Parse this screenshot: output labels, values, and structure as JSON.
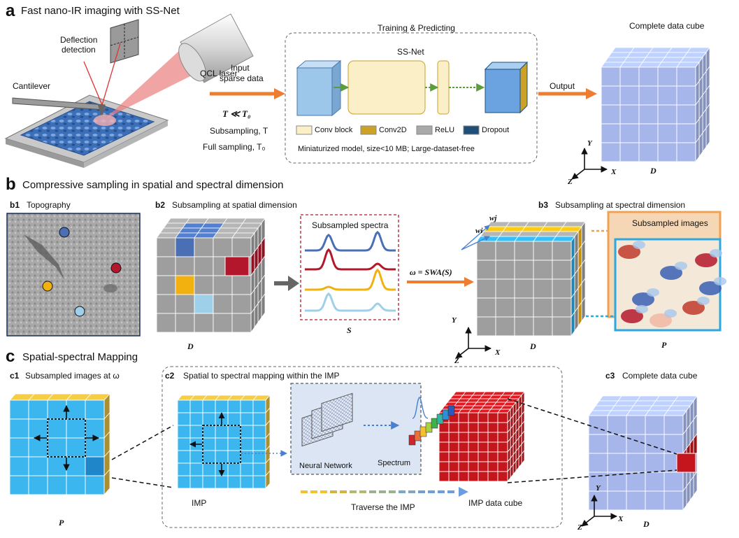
{
  "panel_a": {
    "letter": "a",
    "title": "Fast nano-IR imaging with SS-Net",
    "deflection": [
      "Deflection",
      "detection"
    ],
    "qcl": "QCL laser",
    "cantilever": "Cantilever",
    "input": [
      "Input",
      "sparse data"
    ],
    "t_rel": "T ≪ T₀",
    "subsampling": "Subsampling, T",
    "full_sampling": "Full sampling, T₀",
    "training": "Training & Predicting",
    "ssnet": "SS-Net",
    "legend": [
      "Conv block",
      "Conv2D",
      "ReLU",
      "Dropout"
    ],
    "legend_colors": [
      "#fbefc8",
      "#c9a227",
      "#a9a9a9",
      "#1f4e79"
    ],
    "model_note": "Miniaturized model, size<10 MB;  Large-dataset-free",
    "output": "Output",
    "complete": "Complete data cube",
    "cube_label": "D"
  },
  "panel_b": {
    "letter": "b",
    "title": "Compressive sampling in spatial and spectral dimension",
    "b1": "b1",
    "b1_title": "Topography",
    "b2": "b2",
    "b2_title": "Subsampling at spatial dimension",
    "b2_cube": "D",
    "spectra_title": "Subsampled spectra",
    "spectra_label": "S",
    "omega": "ω = SWA(S)",
    "b3": "b3",
    "b3_title": "Subsampling at spectral dimension",
    "w_j": "wj",
    "w_i": "wi",
    "images_title": "Subsampled images",
    "b3_cube": "D",
    "p_label": "P",
    "colors": [
      "#4a6fb5",
      "#b3172b",
      "#f2b10e",
      "#9fd0ea"
    ]
  },
  "panel_c": {
    "letter": "c",
    "title": "Spatial-spectral Mapping",
    "c1": "c1",
    "c1_title": "Subsampled images at ω",
    "c1_label": "P",
    "c2": "c2",
    "c2_title": "Spatial to spectral mapping within the IMP",
    "imp": "IMP",
    "nn": "Neural Network",
    "spectrum": "Spectrum",
    "traverse": "Traverse the IMP",
    "imp_cube": "IMP data cube",
    "c3": "c3",
    "c3_title": "Complete data cube",
    "c3_label": "D"
  },
  "axes": {
    "x": "X",
    "y": "Y",
    "z": "Z"
  }
}
